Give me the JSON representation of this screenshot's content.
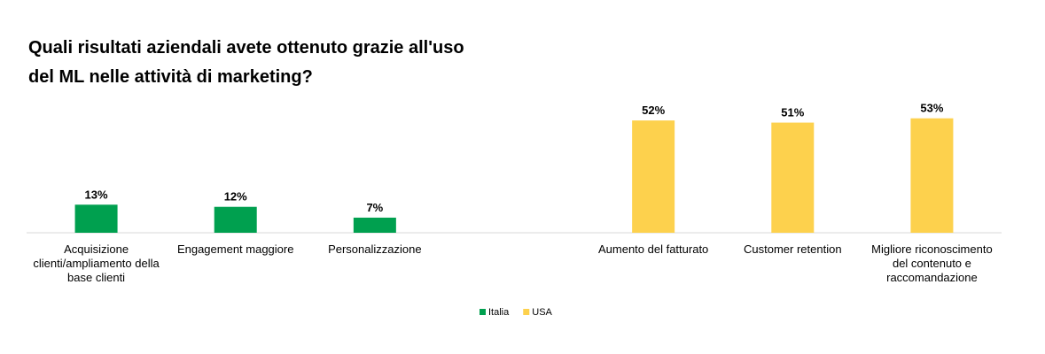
{
  "chart_data": {
    "type": "bar",
    "title": "Quali risultati aziendali avete ottenuto grazie all'uso del ML nelle attività di marketing?",
    "categories": [
      "Acquisizione clienti/ampliamento della base clienti",
      "Engagement maggiore",
      "Personalizzazione",
      null,
      "Aumento del fatturato",
      "Customer retention",
      "Migliore riconoscimento del contenuto e raccomandazione"
    ],
    "series": [
      {
        "name": "Italia",
        "color": "#00a04f",
        "values": [
          13,
          12,
          7,
          null,
          null,
          null,
          null
        ],
        "value_labels": [
          "13%",
          "12%",
          "7%",
          null,
          null,
          null,
          null
        ]
      },
      {
        "name": "USA",
        "color": "#fdd14d",
        "values": [
          null,
          null,
          null,
          null,
          52,
          51,
          53
        ],
        "value_labels": [
          null,
          null,
          null,
          null,
          "52%",
          "51%",
          "53%"
        ]
      }
    ],
    "ylim": [
      0,
      100
    ],
    "legend": "bottom"
  }
}
